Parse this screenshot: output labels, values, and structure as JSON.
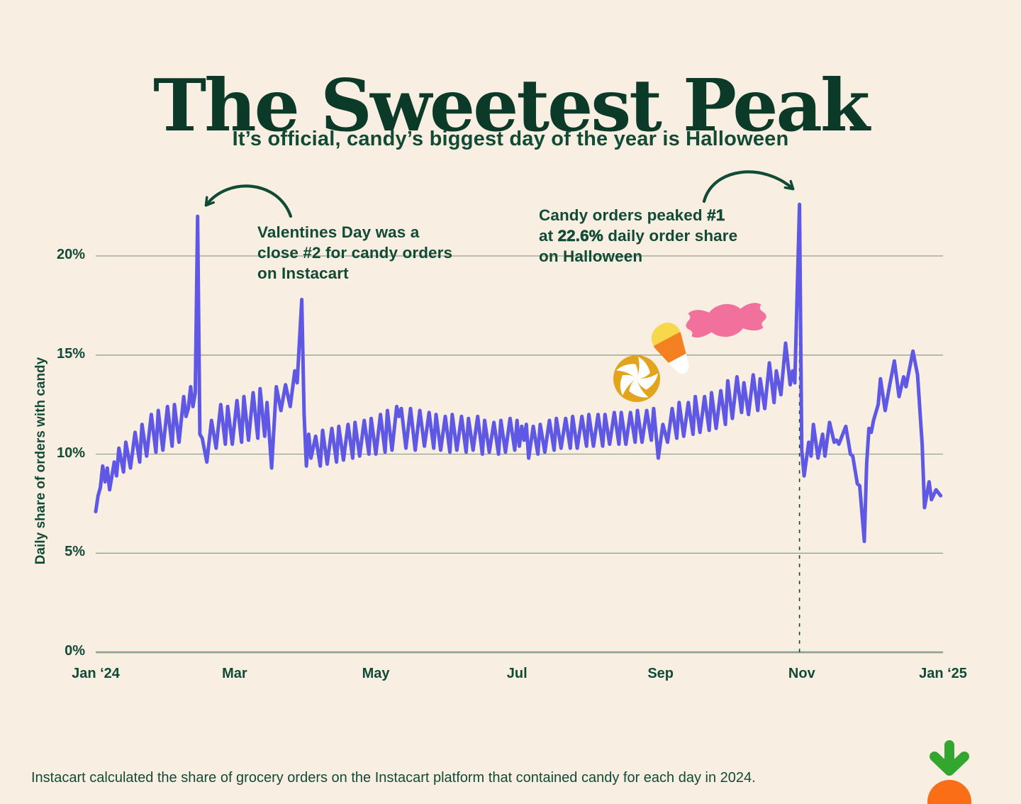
{
  "header": {
    "title": "The Sweetest Peak",
    "subtitle": "It’s official, candy’s biggest day of the year is Halloween"
  },
  "annotations": {
    "valentines": {
      "lines": [
        "Valentines Day was a",
        "close #2 for candy orders",
        "on Instacart"
      ]
    },
    "halloween": {
      "l1_pre": "Candy orders peaked ",
      "l1_bold": "#1",
      "l2_pre": "at ",
      "l2_bold": "22.6%",
      "l2_post": " daily order share",
      "l3": "on Halloween"
    }
  },
  "footer": {
    "note": "Instacart calculated the share of grocery orders on the Instacart platform that contained candy for each day in 2024."
  },
  "colors": {
    "background": "#F8EFE2",
    "ink": "#114B36",
    "title_ink": "#0B3A29",
    "grid": "#93A293",
    "line": "#5E58E4",
    "candy_pink": "#F2719C",
    "candy_corn_yellow": "#F8D84B",
    "candy_corn_orange": "#F5801F",
    "candy_white": "#FFFFFF",
    "peppermint_amber": "#E2A41C",
    "logo_green": "#33A62F",
    "logo_orange": "#F96E16"
  },
  "chart_data": {
    "type": "line",
    "title": "The Sweetest Peak",
    "subtitle": "It’s official, candy’s biggest day of the year is Halloween",
    "xlabel": "",
    "ylabel": "Daily share of orders with candy",
    "ylim": [
      0,
      23
    ],
    "grid": true,
    "x_unit": "day_of_year_2024",
    "days_total": 366,
    "yticks": [
      {
        "value": 0,
        "label": "0%"
      },
      {
        "value": 5,
        "label": "5%"
      },
      {
        "value": 10,
        "label": "10%"
      },
      {
        "value": 15,
        "label": "15%"
      },
      {
        "value": 20,
        "label": "20%"
      }
    ],
    "xticks": [
      {
        "day": 1,
        "label": "Jan ‘24"
      },
      {
        "day": 61,
        "label": "Mar"
      },
      {
        "day": 122,
        "label": "May"
      },
      {
        "day": 183,
        "label": "Jul"
      },
      {
        "day": 245,
        "label": "Sep"
      },
      {
        "day": 306,
        "label": "Nov"
      },
      {
        "day": 367,
        "label": "Jan ‘25"
      }
    ],
    "highlight": {
      "halloween_day": 305,
      "halloween_value": 22.6,
      "valentines_day": 45,
      "valentines_value": 22.0,
      "easter_day": 90,
      "easter_value": 17.8,
      "thanksgiving_day": 333,
      "thanksgiving_value": 5.6
    },
    "series": [
      {
        "name": "Daily share of orders with candy (%)",
        "color": "#5E58E4",
        "points": [
          [
            1,
            7.1
          ],
          [
            2,
            7.9
          ],
          [
            3,
            8.3
          ],
          [
            4,
            9.4
          ],
          [
            5,
            8.6
          ],
          [
            6,
            9.3
          ],
          [
            7,
            8.2
          ],
          [
            9,
            9.6
          ],
          [
            10,
            8.9
          ],
          [
            11,
            10.3
          ],
          [
            13,
            9.1
          ],
          [
            14,
            10.6
          ],
          [
            16,
            9.3
          ],
          [
            18,
            11.1
          ],
          [
            20,
            9.6
          ],
          [
            21,
            11.5
          ],
          [
            23,
            9.9
          ],
          [
            25,
            12.0
          ],
          [
            27,
            10.1
          ],
          [
            28,
            12.2
          ],
          [
            30,
            10.2
          ],
          [
            32,
            12.4
          ],
          [
            34,
            10.4
          ],
          [
            35,
            12.5
          ],
          [
            37,
            10.6
          ],
          [
            39,
            12.9
          ],
          [
            40,
            11.9
          ],
          [
            41,
            12.3
          ],
          [
            42,
            13.4
          ],
          [
            43,
            12.4
          ],
          [
            44,
            13.1
          ],
          [
            45,
            22.0
          ],
          [
            46,
            11.0
          ],
          [
            47,
            10.8
          ],
          [
            49,
            9.6
          ],
          [
            51,
            11.7
          ],
          [
            53,
            10.3
          ],
          [
            55,
            12.5
          ],
          [
            57,
            10.5
          ],
          [
            58,
            12.4
          ],
          [
            60,
            10.5
          ],
          [
            62,
            12.7
          ],
          [
            64,
            10.6
          ],
          [
            65,
            12.9
          ],
          [
            67,
            10.7
          ],
          [
            69,
            13.1
          ],
          [
            71,
            10.8
          ],
          [
            72,
            13.3
          ],
          [
            74,
            10.9
          ],
          [
            75,
            12.6
          ],
          [
            77,
            9.3
          ],
          [
            79,
            13.4
          ],
          [
            81,
            12.2
          ],
          [
            83,
            13.5
          ],
          [
            85,
            12.4
          ],
          [
            87,
            14.2
          ],
          [
            88,
            13.6
          ],
          [
            90,
            17.8
          ],
          [
            91,
            12.0
          ],
          [
            92,
            9.4
          ],
          [
            93,
            11.0
          ],
          [
            94,
            9.8
          ],
          [
            96,
            10.9
          ],
          [
            98,
            9.4
          ],
          [
            99,
            11.2
          ],
          [
            101,
            9.5
          ],
          [
            103,
            11.3
          ],
          [
            105,
            9.6
          ],
          [
            106,
            11.4
          ],
          [
            108,
            9.7
          ],
          [
            110,
            11.5
          ],
          [
            112,
            9.8
          ],
          [
            113,
            11.6
          ],
          [
            115,
            9.9
          ],
          [
            117,
            11.7
          ],
          [
            119,
            10.0
          ],
          [
            120,
            11.8
          ],
          [
            122,
            10.0
          ],
          [
            124,
            12.0
          ],
          [
            126,
            10.1
          ],
          [
            127,
            12.2
          ],
          [
            129,
            10.2
          ],
          [
            131,
            12.4
          ],
          [
            132,
            11.9
          ],
          [
            133,
            12.3
          ],
          [
            135,
            10.3
          ],
          [
            137,
            12.3
          ],
          [
            139,
            10.2
          ],
          [
            141,
            12.2
          ],
          [
            143,
            10.4
          ],
          [
            145,
            12.1
          ],
          [
            147,
            10.3
          ],
          [
            148,
            12.0
          ],
          [
            150,
            10.2
          ],
          [
            152,
            11.9
          ],
          [
            154,
            10.1
          ],
          [
            155,
            12.0
          ],
          [
            157,
            10.2
          ],
          [
            159,
            11.9
          ],
          [
            161,
            10.1
          ],
          [
            162,
            11.8
          ],
          [
            164,
            10.2
          ],
          [
            166,
            11.9
          ],
          [
            168,
            10.0
          ],
          [
            169,
            11.7
          ],
          [
            171,
            10.1
          ],
          [
            173,
            11.6
          ],
          [
            175,
            10.0
          ],
          [
            176,
            11.7
          ],
          [
            178,
            10.1
          ],
          [
            180,
            11.8
          ],
          [
            182,
            10.2
          ],
          [
            183,
            11.7
          ],
          [
            184,
            10.4
          ],
          [
            185,
            11.4
          ],
          [
            186,
            10.7
          ],
          [
            187,
            11.5
          ],
          [
            188,
            9.8
          ],
          [
            190,
            11.4
          ],
          [
            192,
            10.0
          ],
          [
            193,
            11.5
          ],
          [
            195,
            10.1
          ],
          [
            197,
            11.7
          ],
          [
            199,
            10.2
          ],
          [
            200,
            11.8
          ],
          [
            202,
            10.3
          ],
          [
            204,
            11.8
          ],
          [
            206,
            10.3
          ],
          [
            207,
            11.9
          ],
          [
            209,
            10.3
          ],
          [
            211,
            11.9
          ],
          [
            213,
            10.4
          ],
          [
            214,
            12.0
          ],
          [
            216,
            10.4
          ],
          [
            218,
            12.0
          ],
          [
            220,
            10.4
          ],
          [
            221,
            12.0
          ],
          [
            223,
            10.5
          ],
          [
            225,
            12.1
          ],
          [
            227,
            10.5
          ],
          [
            228,
            12.1
          ],
          [
            230,
            10.5
          ],
          [
            232,
            12.1
          ],
          [
            234,
            10.6
          ],
          [
            235,
            12.2
          ],
          [
            237,
            10.6
          ],
          [
            239,
            12.2
          ],
          [
            241,
            10.7
          ],
          [
            242,
            12.3
          ],
          [
            244,
            9.8
          ],
          [
            246,
            11.5
          ],
          [
            248,
            10.6
          ],
          [
            250,
            12.3
          ],
          [
            252,
            10.8
          ],
          [
            253,
            12.6
          ],
          [
            255,
            10.9
          ],
          [
            257,
            12.6
          ],
          [
            259,
            11.0
          ],
          [
            260,
            12.9
          ],
          [
            262,
            11.1
          ],
          [
            264,
            12.9
          ],
          [
            266,
            11.2
          ],
          [
            267,
            13.1
          ],
          [
            269,
            11.3
          ],
          [
            271,
            13.2
          ],
          [
            273,
            11.5
          ],
          [
            274,
            13.7
          ],
          [
            276,
            11.8
          ],
          [
            278,
            13.9
          ],
          [
            280,
            12.1
          ],
          [
            281,
            13.6
          ],
          [
            283,
            12.0
          ],
          [
            285,
            14.0
          ],
          [
            287,
            12.2
          ],
          [
            288,
            13.8
          ],
          [
            290,
            12.3
          ],
          [
            292,
            14.6
          ],
          [
            294,
            12.6
          ],
          [
            295,
            14.2
          ],
          [
            297,
            13.0
          ],
          [
            299,
            15.6
          ],
          [
            301,
            13.5
          ],
          [
            302,
            14.2
          ],
          [
            303,
            13.6
          ],
          [
            305,
            22.6
          ],
          [
            306,
            10.2
          ],
          [
            307,
            8.9
          ],
          [
            309,
            10.6
          ],
          [
            310,
            9.9
          ],
          [
            311,
            11.5
          ],
          [
            313,
            9.8
          ],
          [
            315,
            11.0
          ],
          [
            316,
            9.9
          ],
          [
            318,
            11.6
          ],
          [
            320,
            10.6
          ],
          [
            321,
            10.7
          ],
          [
            322,
            10.5
          ],
          [
            324,
            11.1
          ],
          [
            325,
            11.4
          ],
          [
            327,
            10.0
          ],
          [
            328,
            9.9
          ],
          [
            330,
            8.5
          ],
          [
            331,
            8.4
          ],
          [
            333,
            5.6
          ],
          [
            334,
            9.5
          ],
          [
            335,
            11.3
          ],
          [
            336,
            11.1
          ],
          [
            337,
            11.7
          ],
          [
            339,
            12.5
          ],
          [
            340,
            13.8
          ],
          [
            342,
            12.2
          ],
          [
            344,
            13.5
          ],
          [
            346,
            14.7
          ],
          [
            348,
            12.9
          ],
          [
            350,
            13.9
          ],
          [
            351,
            13.4
          ],
          [
            354,
            15.2
          ],
          [
            356,
            14.0
          ],
          [
            358,
            10.5
          ],
          [
            359,
            7.3
          ],
          [
            361,
            8.6
          ],
          [
            362,
            7.7
          ],
          [
            364,
            8.2
          ],
          [
            366,
            7.9
          ]
        ]
      }
    ],
    "legend": null
  }
}
